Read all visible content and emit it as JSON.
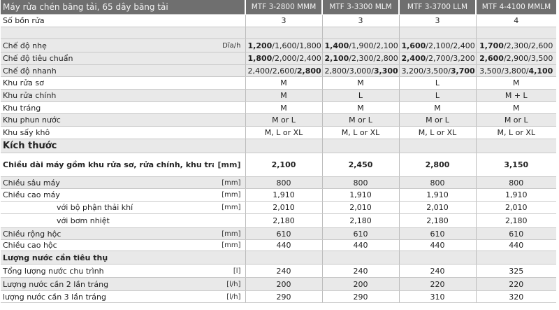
{
  "title": "Máy rửa chén băng tải, 65 dây băng tải",
  "models": [
    "MTF 3-2800 MMM",
    "MTF 3-3300 MLM",
    "MTF 3-3700 LLM",
    "MTF 4-4100 MMLM"
  ],
  "rows": [
    {
      "label": "Số bồn rửa",
      "unit": "",
      "values": [
        [
          "3"
        ],
        [
          "3"
        ],
        [
          "3"
        ],
        [
          "4"
        ]
      ],
      "shade": false,
      "h": 18
    },
    {
      "label": "",
      "unit": "",
      "values": [
        [
          ""
        ],
        [
          ""
        ],
        [
          ""
        ],
        [
          ""
        ]
      ],
      "shade": true,
      "h": 17
    },
    {
      "label": "Chế độ nhẹ",
      "unit": "Dĩa/h",
      "values": [
        [
          "1,200",
          "/1,600/1,800"
        ],
        [
          "1,400",
          "/1,900/2,100"
        ],
        [
          "1,600",
          "/2,100/2,400"
        ],
        [
          "1,700",
          "/2,300/2,600"
        ]
      ],
      "boldFirst": true,
      "shade": true,
      "h": 19
    },
    {
      "label": "Chế độ tiêu chuẩn",
      "unit": "",
      "values": [
        [
          "1,800",
          "/2,000/2,400"
        ],
        [
          "2,100",
          "/2,300/2,800"
        ],
        [
          "2,400",
          "/2,700/3,200"
        ],
        [
          "2,600",
          "/2,900/3,500"
        ]
      ],
      "boldFirst": true,
      "shade": true,
      "h": 18
    },
    {
      "label": "Chế độ nhanh",
      "unit": "",
      "values": [
        [
          "2,400/2,600/",
          "2,800"
        ],
        [
          "2,800/3,000/",
          "3,300"
        ],
        [
          "3,200/3,500/",
          "3,700"
        ],
        [
          "3,500/3,800/",
          "4,100"
        ]
      ],
      "boldLast": true,
      "shade": true,
      "h": 17
    },
    {
      "label": "Khu rửa sơ",
      "unit": "",
      "values": [
        [
          "M"
        ],
        [
          "M"
        ],
        [
          "L"
        ],
        [
          "M"
        ]
      ],
      "shade": false,
      "h": 18
    },
    {
      "label": "Khu rửa chính",
      "unit": "",
      "values": [
        [
          "M"
        ],
        [
          "L"
        ],
        [
          "L"
        ],
        [
          "M + L"
        ]
      ],
      "shade": true,
      "h": 18
    },
    {
      "label": "Khu tráng",
      "unit": "",
      "values": [
        [
          "M"
        ],
        [
          "M"
        ],
        [
          "M"
        ],
        [
          "M"
        ]
      ],
      "shade": false,
      "h": 17
    },
    {
      "label": "Khu phun nước",
      "unit": "",
      "values": [
        [
          "M or L"
        ],
        [
          "M or L"
        ],
        [
          "M or L"
        ],
        [
          "M or L"
        ]
      ],
      "shade": true,
      "h": 18
    },
    {
      "label": "Khu sấy khô",
      "unit": "",
      "values": [
        [
          "M, L or XL"
        ],
        [
          "M, L or XL"
        ],
        [
          "M, L or XL"
        ],
        [
          "M, L or XL"
        ]
      ],
      "shade": false,
      "h": 18
    },
    {
      "label": "Kích thước",
      "unit": "",
      "values": [
        [
          ""
        ],
        [
          ""
        ],
        [
          ""
        ],
        [
          ""
        ]
      ],
      "shade": true,
      "section": true,
      "h": 20
    },
    {
      "label": "Chiều dài máy gồm khu rửa sơ, rửa chính, khu tráng",
      "unit": "[mm]",
      "values": [
        [
          "2,100"
        ],
        [
          "2,450"
        ],
        [
          "2,800"
        ],
        [
          "3,150"
        ]
      ],
      "shade": false,
      "sub": true,
      "h": 34
    },
    {
      "label": "Chiều sâu máy",
      "unit": "[mm]",
      "values": [
        [
          "800"
        ],
        [
          "800"
        ],
        [
          "800"
        ],
        [
          "800"
        ]
      ],
      "shade": true,
      "h": 17
    },
    {
      "label": "Chiều cao máy",
      "unit": "[mm]",
      "values": [
        [
          "1,910"
        ],
        [
          "1,910"
        ],
        [
          "1,910"
        ],
        [
          "1,910"
        ]
      ],
      "shade": false,
      "h": 18
    },
    {
      "label": "với bộ phận thải khí",
      "unit": "[mm]",
      "values": [
        [
          "2,010"
        ],
        [
          "2,010"
        ],
        [
          "2,010"
        ],
        [
          "2,010"
        ]
      ],
      "shade": false,
      "indent": true,
      "h": 18
    },
    {
      "label": "với bơm nhiệt",
      "unit": "",
      "values": [
        [
          "2,180"
        ],
        [
          "2,180"
        ],
        [
          "2,180"
        ],
        [
          "2,180"
        ]
      ],
      "shade": false,
      "indent": true,
      "h": 20
    },
    {
      "label": "Chiều rộng hộc",
      "unit": "[mm]",
      "values": [
        [
          "610"
        ],
        [
          "610"
        ],
        [
          "610"
        ],
        [
          "610"
        ]
      ],
      "shade": true,
      "h": 17
    },
    {
      "label": "Chiều cao hộc",
      "unit": "[mm]",
      "values": [
        [
          "440"
        ],
        [
          "440"
        ],
        [
          "440"
        ],
        [
          "440"
        ]
      ],
      "shade": false,
      "h": 16
    },
    {
      "label": "Lượng nước cần tiêu thụ",
      "unit": "",
      "values": [
        [
          ""
        ],
        [
          ""
        ],
        [
          ""
        ],
        [
          ""
        ]
      ],
      "shade": true,
      "sub": true,
      "h": 19
    },
    {
      "label": "Tổng lượng nước chu trình",
      "unit": "[l]",
      "values": [
        [
          "240"
        ],
        [
          "240"
        ],
        [
          "240"
        ],
        [
          "325"
        ]
      ],
      "shade": false,
      "h": 19
    },
    {
      "label": "Lượng nước cần 2 lần tráng",
      "unit": "[l/h]",
      "values": [
        [
          "200"
        ],
        [
          "200"
        ],
        [
          "220"
        ],
        [
          "220"
        ]
      ],
      "shade": true,
      "h": 19
    },
    {
      "label": "lượng nước cần 3 lần tráng",
      "unit": "[l/h]",
      "values": [
        [
          "290"
        ],
        [
          "290"
        ],
        [
          "310"
        ],
        [
          "320"
        ]
      ],
      "shade": false,
      "h": 17
    }
  ],
  "colors": {
    "header_bg": "#6f6f6f",
    "row_shade": "#e9e9e9"
  }
}
